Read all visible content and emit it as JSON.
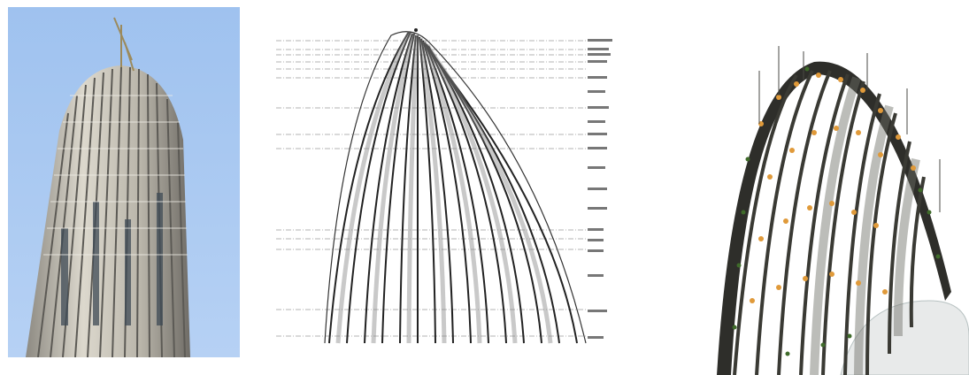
{
  "panels": [
    {
      "id": "photo",
      "name": "tower-under-construction-photo"
    },
    {
      "id": "drawing",
      "name": "elevation-line-drawing"
    },
    {
      "id": "model",
      "name": "steel-structure-3d-model"
    }
  ],
  "colors": {
    "sky": "#a9c9f0",
    "facade_light": "#d9d6cc",
    "facade_dark": "#4a4a48",
    "line_ink": "#222222",
    "grid_line": "#9a9a9a",
    "model_dark": "#2e2e2a",
    "model_orange": "#e09a3a",
    "model_green": "#3f6b2a",
    "model_floor": "#e8eaea"
  }
}
